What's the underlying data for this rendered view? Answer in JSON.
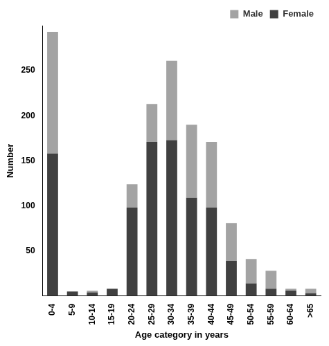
{
  "chart_data": {
    "type": "bar",
    "stacked": true,
    "x_label": "Age category in years",
    "y_label": "Number",
    "categories": [
      "0-4",
      "5-9",
      "10-14",
      "15-19",
      "20-24",
      "25-29",
      "30-34",
      "35-39",
      "40-44",
      "45-49",
      "50-54",
      "55-59",
      "60-64",
      ">65"
    ],
    "series": [
      {
        "name": "Female",
        "color": "#404040",
        "values": [
          158,
          5,
          4,
          8,
          98,
          171,
          173,
          109,
          98,
          39,
          14,
          8,
          6,
          3
        ]
      },
      {
        "name": "Male",
        "color": "#a3a3a3",
        "values": [
          135,
          0,
          2,
          0,
          26,
          42,
          88,
          81,
          73,
          42,
          27,
          20,
          2,
          5
        ]
      }
    ],
    "ylim": [
      0,
      300
    ],
    "yticks": [
      50,
      100,
      150,
      200,
      250
    ],
    "grid": false,
    "legend": "upper right"
  }
}
